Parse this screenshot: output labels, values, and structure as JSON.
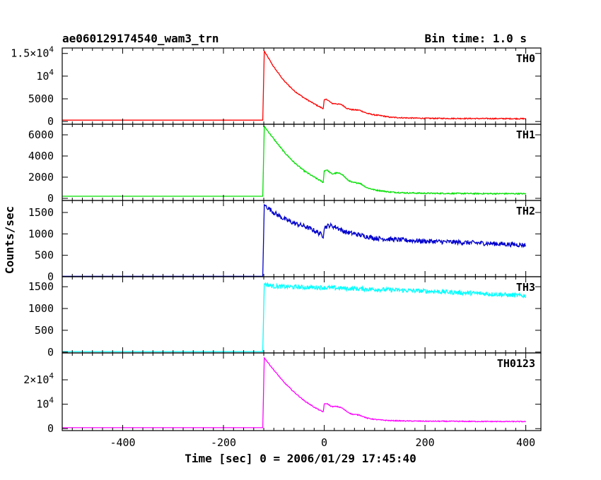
{
  "chart_data": {
    "type": "line",
    "title": "ae060129174540_wam3_trn",
    "subtitle": "Bin time: 1.0 s",
    "xlabel": "Time [sec] 0 = 2006/01/29 17:45:40",
    "ylabel": "Counts/sec",
    "xlim": [
      -520,
      430
    ],
    "x_ticks": [
      -400,
      -200,
      0,
      200,
      400
    ],
    "grid": false,
    "trigger_time": -120,
    "panels": [
      {
        "name": "TH0",
        "color": "#ff0000",
        "ylim": [
          -600,
          16200
        ],
        "y_ticks": [
          {
            "value": 0,
            "label": "0",
            "sup": ""
          },
          {
            "value": 5000,
            "label": "5000",
            "sup": ""
          },
          {
            "value": 10000,
            "label": "10",
            "sup": "4"
          },
          {
            "value": 15000,
            "label": "1.5×10",
            "sup": "4"
          }
        ],
        "series": {
          "noise": 120,
          "points": [
            [
              -520,
              300
            ],
            [
              -122,
              300
            ],
            [
              -119,
              15500
            ],
            [
              -100,
              12000
            ],
            [
              -80,
              9000
            ],
            [
              -60,
              6800
            ],
            [
              -40,
              5200
            ],
            [
              -20,
              3900
            ],
            [
              -5,
              3000
            ],
            [
              -2,
              2900
            ],
            [
              0,
              4700
            ],
            [
              5,
              4900
            ],
            [
              15,
              4000
            ],
            [
              25,
              3900
            ],
            [
              35,
              3700
            ],
            [
              45,
              2900
            ],
            [
              55,
              2600
            ],
            [
              70,
              2500
            ],
            [
              85,
              1800
            ],
            [
              100,
              1450
            ],
            [
              115,
              1250
            ],
            [
              130,
              950
            ],
            [
              160,
              800
            ],
            [
              200,
              700
            ],
            [
              300,
              650
            ],
            [
              400,
              620
            ]
          ]
        }
      },
      {
        "name": "TH1",
        "color": "#00e000",
        "ylim": [
          -200,
          7000
        ],
        "y_ticks": [
          {
            "value": 0,
            "label": "0",
            "sup": ""
          },
          {
            "value": 2000,
            "label": "2000",
            "sup": ""
          },
          {
            "value": 4000,
            "label": "4000",
            "sup": ""
          },
          {
            "value": 6000,
            "label": "6000",
            "sup": ""
          }
        ],
        "series": {
          "noise": 60,
          "points": [
            [
              -520,
              200
            ],
            [
              -122,
              200
            ],
            [
              -119,
              6800
            ],
            [
              -100,
              5600
            ],
            [
              -80,
              4400
            ],
            [
              -60,
              3400
            ],
            [
              -40,
              2600
            ],
            [
              -20,
              2000
            ],
            [
              -5,
              1600
            ],
            [
              -2,
              1500
            ],
            [
              0,
              2600
            ],
            [
              5,
              2700
            ],
            [
              15,
              2300
            ],
            [
              25,
              2400
            ],
            [
              35,
              2300
            ],
            [
              45,
              1800
            ],
            [
              55,
              1500
            ],
            [
              70,
              1450
            ],
            [
              85,
              1000
            ],
            [
              100,
              800
            ],
            [
              115,
              700
            ],
            [
              130,
              600
            ],
            [
              160,
              520
            ],
            [
              200,
              480
            ],
            [
              300,
              450
            ],
            [
              400,
              440
            ]
          ]
        }
      },
      {
        "name": "TH2",
        "color": "#0000cc",
        "ylim": [
          0,
          1780
        ],
        "y_ticks": [
          {
            "value": 0,
            "label": "0",
            "sup": ""
          },
          {
            "value": 500,
            "label": "500",
            "sup": ""
          },
          {
            "value": 1000,
            "label": "1000",
            "sup": ""
          },
          {
            "value": 1500,
            "label": "1500",
            "sup": ""
          }
        ],
        "series": {
          "noise": 55,
          "points": [
            [
              -520,
              10
            ],
            [
              -122,
              10
            ],
            [
              -119,
              1680
            ],
            [
              -100,
              1500
            ],
            [
              -80,
              1350
            ],
            [
              -60,
              1250
            ],
            [
              -40,
              1180
            ],
            [
              -20,
              1080
            ],
            [
              -5,
              980
            ],
            [
              -2,
              950
            ],
            [
              0,
              1150
            ],
            [
              10,
              1200
            ],
            [
              25,
              1150
            ],
            [
              40,
              1050
            ],
            [
              60,
              1000
            ],
            [
              80,
              950
            ],
            [
              100,
              900
            ],
            [
              150,
              860
            ],
            [
              200,
              830
            ],
            [
              300,
              790
            ],
            [
              400,
              740
            ]
          ]
        }
      },
      {
        "name": "TH3",
        "color": "#00ffff",
        "ylim": [
          -20,
          1730
        ],
        "y_ticks": [
          {
            "value": 0,
            "label": "0",
            "sup": ""
          },
          {
            "value": 500,
            "label": "500",
            "sup": ""
          },
          {
            "value": 1000,
            "label": "1000",
            "sup": ""
          },
          {
            "value": 1500,
            "label": "1500",
            "sup": ""
          }
        ],
        "series": {
          "noise": 50,
          "points": [
            [
              -520,
              10
            ],
            [
              -122,
              10
            ],
            [
              -119,
              1560
            ],
            [
              -100,
              1510
            ],
            [
              -50,
              1490
            ],
            [
              0,
              1480
            ],
            [
              50,
              1460
            ],
            [
              100,
              1440
            ],
            [
              200,
              1400
            ],
            [
              300,
              1350
            ],
            [
              400,
              1290
            ]
          ]
        }
      },
      {
        "name": "TH0123",
        "color": "#ff00ff",
        "ylim": [
          -800,
          31000
        ],
        "y_ticks": [
          {
            "value": 0,
            "label": "0",
            "sup": ""
          },
          {
            "value": 10000,
            "label": "10",
            "sup": "4"
          },
          {
            "value": 20000,
            "label": "2×10",
            "sup": "4"
          }
        ],
        "series": {
          "noise": 180,
          "points": [
            [
              -520,
              400
            ],
            [
              -122,
              400
            ],
            [
              -119,
              29000
            ],
            [
              -100,
              24000
            ],
            [
              -80,
              19000
            ],
            [
              -60,
              15000
            ],
            [
              -40,
              11500
            ],
            [
              -20,
              8800
            ],
            [
              -5,
              7100
            ],
            [
              -2,
              6900
            ],
            [
              0,
              10000
            ],
            [
              5,
              10300
            ],
            [
              15,
              9000
            ],
            [
              25,
              9100
            ],
            [
              35,
              8500
            ],
            [
              45,
              7000
            ],
            [
              55,
              5900
            ],
            [
              70,
              5600
            ],
            [
              85,
              4300
            ],
            [
              100,
              3800
            ],
            [
              115,
              3500
            ],
            [
              130,
              3300
            ],
            [
              160,
              3150
            ],
            [
              200,
              3050
            ],
            [
              300,
              2950
            ],
            [
              400,
              2900
            ]
          ]
        }
      }
    ]
  }
}
